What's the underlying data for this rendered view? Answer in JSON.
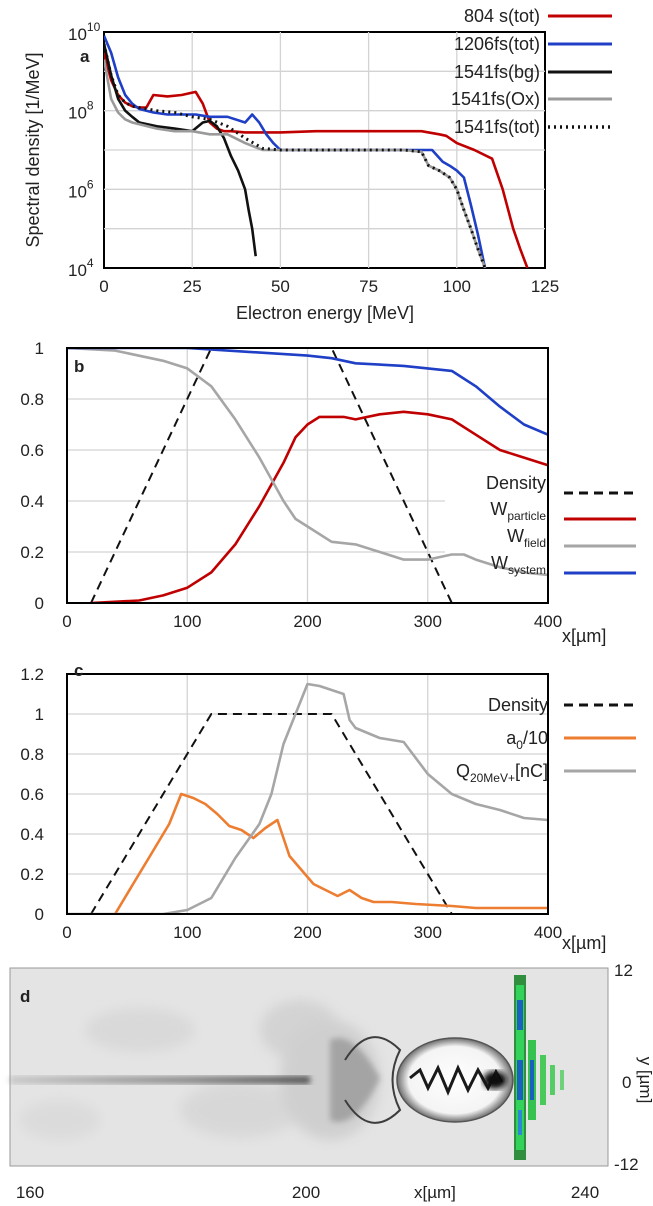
{
  "chart_data": [
    {
      "panel": "a",
      "type": "line",
      "xlabel": "Electron energy [MeV]",
      "ylabel": "Spectral density [1/MeV]",
      "yscale": "log",
      "xlim": [
        0,
        125
      ],
      "ylim": [
        10000,
        10000000000
      ],
      "xticks": [
        "0",
        "25",
        "50",
        "75",
        "100",
        "125"
      ],
      "yticks": [
        {
          "base": "10",
          "exp": "4"
        },
        {
          "base": "10",
          "exp": "6"
        },
        {
          "base": "10",
          "exp": "8"
        },
        {
          "base": "10",
          "exp": "10"
        }
      ],
      "grid": true,
      "legend_position": "top-right outside",
      "series": [
        {
          "name": "804 s(tot)",
          "color": "#c00000",
          "dash": "solid",
          "x": [
            0,
            2,
            4,
            6,
            8,
            10,
            12,
            14,
            18,
            22,
            26,
            28,
            30,
            32,
            34,
            36,
            40,
            50,
            60,
            70,
            80,
            90,
            95,
            97,
            100,
            105,
            110,
            113,
            116,
            118,
            120
          ],
          "y": [
            3000000000.0,
            600000000.0,
            250000000.0,
            160000000.0,
            130000000.0,
            120000000.0,
            120000000.0,
            250000000.0,
            230000000.0,
            250000000.0,
            300000000.0,
            150000000.0,
            50000000.0,
            35000000.0,
            30000000.0,
            30000000.0,
            28000000.0,
            28000000.0,
            30000000.0,
            30000000.0,
            30000000.0,
            30000000.0,
            25000000.0,
            23000000.0,
            15000000.0,
            10000000.0,
            6000000.0,
            1000000.0,
            100000.0,
            30000.0,
            10000.0
          ]
        },
        {
          "name": "1206fs(tot)",
          "color": "#1f3fc6",
          "dash": "solid",
          "x": [
            0,
            2,
            4,
            6,
            8,
            10,
            14,
            18,
            22,
            26,
            30,
            35,
            40,
            42,
            44,
            46,
            48,
            50,
            60,
            70,
            80,
            90,
            93,
            96,
            98,
            100,
            102,
            104,
            106,
            108
          ],
          "y": [
            8000000000.0,
            3000000000.0,
            700000000.0,
            250000000.0,
            150000000.0,
            110000000.0,
            90000000.0,
            80000000.0,
            80000000.0,
            80000000.0,
            70000000.0,
            70000000.0,
            50000000.0,
            80000000.0,
            50000000.0,
            25000000.0,
            15000000.0,
            10000000.0,
            10000000.0,
            10000000.0,
            10000000.0,
            10000000.0,
            10000000.0,
            5000000.0,
            4000000.0,
            3000000.0,
            2000000.0,
            400000.0,
            70000.0,
            10000.0
          ]
        },
        {
          "name": "1541fs(bg)",
          "color": "#111111",
          "dash": "solid",
          "x": [
            0,
            2,
            4,
            6,
            8,
            10,
            15,
            20,
            25,
            28,
            30,
            32,
            34,
            36,
            38,
            40,
            41,
            42,
            43
          ],
          "y": [
            5000000000.0,
            800000000.0,
            200000000.0,
            100000000.0,
            70000000.0,
            50000000.0,
            40000000.0,
            35000000.0,
            30000000.0,
            50000000.0,
            55000000.0,
            40000000.0,
            20000000.0,
            7000000.0,
            3000000.0,
            1000000.0,
            300000.0,
            100000.0,
            20000.0
          ]
        },
        {
          "name": "1541fs(Ox)",
          "color": "#9a9a9a",
          "dash": "solid",
          "x": [
            0,
            2,
            4,
            6,
            8,
            10,
            15,
            20,
            25,
            30,
            35,
            40,
            45,
            50,
            60,
            70,
            80,
            85,
            90,
            92,
            95,
            98,
            100,
            102,
            104,
            106,
            108
          ],
          "y": [
            2000000000.0,
            200000000.0,
            90000000.0,
            60000000.0,
            50000000.0,
            45000000.0,
            35000000.0,
            30000000.0,
            30000000.0,
            25000000.0,
            25000000.0,
            15000000.0,
            10000000.0,
            10000000.0,
            10000000.0,
            10000000.0,
            10000000.0,
            10000000.0,
            9000000.0,
            4000000.0,
            3000000.0,
            2000000.0,
            1000000.0,
            300000.0,
            100000.0,
            30000.0,
            10000.0
          ]
        },
        {
          "name": "1541fs(tot)",
          "color": "#111111",
          "dash": "dotted",
          "x": [
            0,
            2,
            4,
            6,
            8,
            10,
            15,
            20,
            25,
            30,
            35,
            40,
            45,
            50,
            60,
            70,
            80,
            85,
            90,
            92,
            95,
            98,
            100,
            102,
            104,
            106,
            108
          ],
          "y": [
            5000000000.0,
            800000000.0,
            250000000.0,
            160000000.0,
            130000000.0,
            120000000.0,
            100000000.0,
            90000000.0,
            70000000.0,
            60000000.0,
            40000000.0,
            20000000.0,
            11000000.0,
            10000000.0,
            10000000.0,
            10000000.0,
            10000000.0,
            10000000.0,
            9000000.0,
            4000000.0,
            3000000.0,
            2000000.0,
            1000000.0,
            300000.0,
            100000.0,
            30000.0,
            10000.0
          ]
        }
      ]
    },
    {
      "panel": "b",
      "type": "line",
      "xlabel": "x[µm]",
      "xlim": [
        0,
        400
      ],
      "ylim": [
        0,
        1
      ],
      "xticks": [
        "0",
        "100",
        "200",
        "300",
        "400"
      ],
      "yticks": [
        "0",
        "0.2",
        "0.4",
        "0.6",
        "0.8",
        "1"
      ],
      "grid": true,
      "legend_position": "right",
      "series": [
        {
          "name": "Density",
          "color": "#111111",
          "dash": "dashed",
          "x": [
            20,
            120,
            220,
            320
          ],
          "y": [
            0,
            1,
            1,
            0
          ]
        },
        {
          "name": "W",
          "sub": "particle",
          "color": "#c00000",
          "dash": "solid",
          "x": [
            20,
            60,
            80,
            100,
            120,
            140,
            160,
            180,
            190,
            200,
            210,
            220,
            230,
            240,
            260,
            280,
            300,
            320,
            340,
            360,
            380,
            400
          ],
          "y": [
            0,
            0.01,
            0.03,
            0.06,
            0.12,
            0.23,
            0.38,
            0.55,
            0.65,
            0.7,
            0.73,
            0.73,
            0.73,
            0.72,
            0.74,
            0.75,
            0.74,
            0.72,
            0.66,
            0.6,
            0.57,
            0.54
          ]
        },
        {
          "name": "W",
          "sub": "field",
          "color": "#a6a6a6",
          "dash": "solid",
          "x": [
            0,
            40,
            80,
            100,
            120,
            140,
            160,
            180,
            190,
            200,
            220,
            240,
            260,
            280,
            300,
            320,
            330,
            340,
            360,
            380,
            400
          ],
          "y": [
            1,
            0.99,
            0.95,
            0.92,
            0.85,
            0.72,
            0.57,
            0.4,
            0.33,
            0.3,
            0.24,
            0.23,
            0.2,
            0.17,
            0.17,
            0.19,
            0.19,
            0.17,
            0.14,
            0.12,
            0.11
          ]
        },
        {
          "name": "W",
          "sub": "system",
          "color": "#1f3fc6",
          "dash": "solid",
          "x": [
            0,
            100,
            200,
            220,
            240,
            280,
            300,
            320,
            340,
            360,
            380,
            400
          ],
          "y": [
            1,
            1,
            0.97,
            0.96,
            0.94,
            0.93,
            0.92,
            0.91,
            0.85,
            0.77,
            0.7,
            0.66
          ]
        }
      ]
    },
    {
      "panel": "c",
      "type": "line",
      "xlabel": "x[µm]",
      "xlim": [
        0,
        400
      ],
      "ylim": [
        0,
        1.2
      ],
      "xticks": [
        "0",
        "100",
        "200",
        "300",
        "400"
      ],
      "yticks": [
        "0",
        "0.2",
        "0.4",
        "0.6",
        "0.8",
        "1",
        "1.2"
      ],
      "grid": true,
      "legend_position": "right",
      "series": [
        {
          "name": "Density",
          "color": "#111111",
          "dash": "dashed",
          "x": [
            20,
            120,
            220,
            320
          ],
          "y": [
            0,
            1,
            1,
            0
          ]
        },
        {
          "name": "a",
          "sub": "0",
          "suffix": "/10",
          "color": "#ed7d31",
          "dash": "solid",
          "x": [
            40,
            55,
            70,
            85,
            95,
            105,
            115,
            125,
            135,
            145,
            155,
            165,
            175,
            185,
            195,
            205,
            215,
            225,
            235,
            245,
            255,
            270,
            290,
            320,
            340,
            360,
            380,
            400
          ],
          "y": [
            0,
            0.15,
            0.3,
            0.45,
            0.6,
            0.58,
            0.55,
            0.5,
            0.44,
            0.42,
            0.38,
            0.43,
            0.47,
            0.29,
            0.22,
            0.15,
            0.12,
            0.09,
            0.12,
            0.08,
            0.06,
            0.06,
            0.05,
            0.04,
            0.03,
            0.03,
            0.03,
            0.03
          ]
        },
        {
          "name": "Q",
          "sub": "20MeV+",
          "suffix": "[nC]",
          "color": "#a6a6a6",
          "dash": "solid",
          "x": [
            0,
            80,
            100,
            120,
            140,
            160,
            170,
            180,
            190,
            200,
            210,
            220,
            230,
            235,
            240,
            260,
            280,
            300,
            320,
            340,
            360,
            380,
            400
          ],
          "y": [
            0,
            0,
            0.02,
            0.08,
            0.28,
            0.45,
            0.6,
            0.85,
            1,
            1.15,
            1.14,
            1.12,
            1.1,
            0.97,
            0.93,
            0.88,
            0.86,
            0.7,
            0.6,
            0.55,
            0.52,
            0.48,
            0.47
          ]
        }
      ]
    },
    {
      "panel": "d",
      "type": "heatmap",
      "xlabel": "x[µm]",
      "ylabel": "y [µm]",
      "xlim": [
        160,
        240
      ],
      "ylim": [
        -12,
        12
      ],
      "xticks": [
        "160",
        "200",
        "240"
      ],
      "yticks": [
        "12",
        "0",
        "-12"
      ]
    }
  ]
}
